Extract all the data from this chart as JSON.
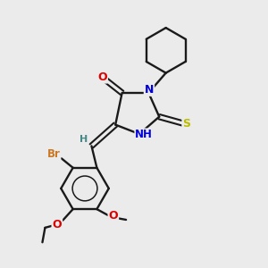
{
  "background_color": "#ebebeb",
  "bond_color": "#1a1a1a",
  "atom_colors": {
    "N": "#0000dd",
    "O": "#dd0000",
    "S": "#bbbb00",
    "Br": "#cc7722",
    "H_label": "#448888",
    "C": "#1a1a1a"
  }
}
